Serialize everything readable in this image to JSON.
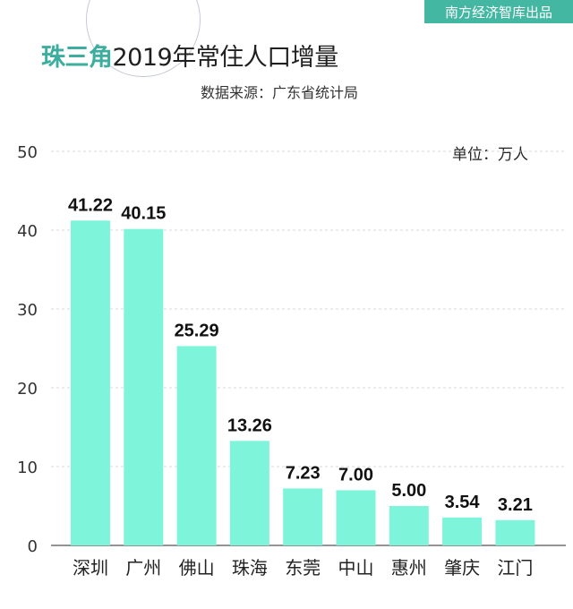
{
  "header": {
    "brand": "南方经济智库出品",
    "title_accent": "珠三角",
    "title_rest": "2019年常住人口增量",
    "source": "数据来源：广东省统计局",
    "unit": "单位：万人"
  },
  "colors": {
    "bar": "#7ef5da",
    "accent": "#3cae9f",
    "brand_bg": "#44b7a3",
    "grid": "#d9d9d9"
  },
  "chart_data": {
    "type": "bar",
    "title": "珠三角2019年常住人口增量",
    "categories": [
      "深圳",
      "广州",
      "佛山",
      "珠海",
      "东莞",
      "中山",
      "惠州",
      "肇庆",
      "江门"
    ],
    "labels": [
      "41.22",
      "40.15",
      "25.29",
      "13.26",
      "7.23",
      "7.00",
      "5.00",
      "3.54",
      "3.21"
    ],
    "values": [
      41.22,
      40.15,
      25.29,
      13.26,
      7.23,
      7.0,
      5.0,
      3.54,
      3.21
    ],
    "yticks": [
      "0",
      "10",
      "20",
      "30",
      "40",
      "50"
    ],
    "ylim": [
      0,
      50
    ],
    "grid": true,
    "gridline_style": "dashed",
    "unit": "万人"
  }
}
